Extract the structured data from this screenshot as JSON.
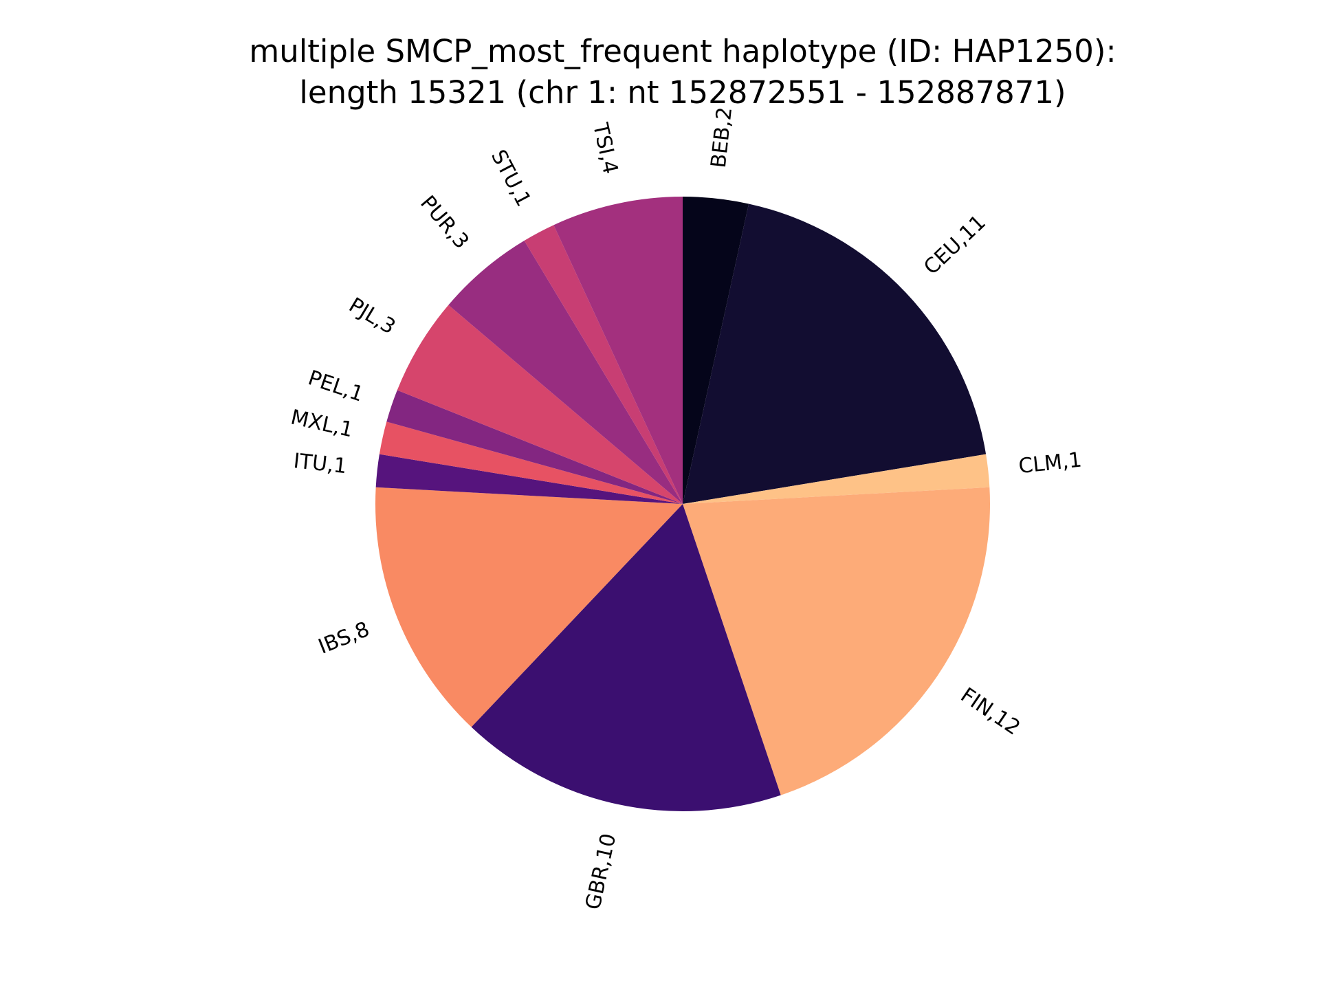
{
  "chart_data": {
    "type": "pie",
    "title": "multiple SMCP_most_frequent haplotype (ID: HAP1250):",
    "subtitle": "length 15321 (chr 1: nt 152872551 - 152887871)",
    "start": "top",
    "direction": "clockwise",
    "slices": [
      {
        "label": "BEB,2",
        "value": 2,
        "color": "#05051a"
      },
      {
        "label": "CEU,11",
        "value": 11,
        "color": "#120d31"
      },
      {
        "label": "CLM,1",
        "value": 1,
        "color": "#fec287"
      },
      {
        "label": "FIN,12",
        "value": 12,
        "color": "#fdab78"
      },
      {
        "label": "GBR,10",
        "value": 10,
        "color": "#3b0f70"
      },
      {
        "label": "IBS,8",
        "value": 8,
        "color": "#f98a63"
      },
      {
        "label": "ITU,1",
        "value": 1,
        "color": "#56147d"
      },
      {
        "label": "MXL,1",
        "value": 1,
        "color": "#e75263"
      },
      {
        "label": "PEL,1",
        "value": 1,
        "color": "#832681"
      },
      {
        "label": "PJL,3",
        "value": 3,
        "color": "#d6456c"
      },
      {
        "label": "PUR,3",
        "value": 3,
        "color": "#982d80"
      },
      {
        "label": "STU,1",
        "value": 1,
        "color": "#c83e73"
      },
      {
        "label": "TSI,4",
        "value": 4,
        "color": "#a3307e"
      }
    ]
  }
}
